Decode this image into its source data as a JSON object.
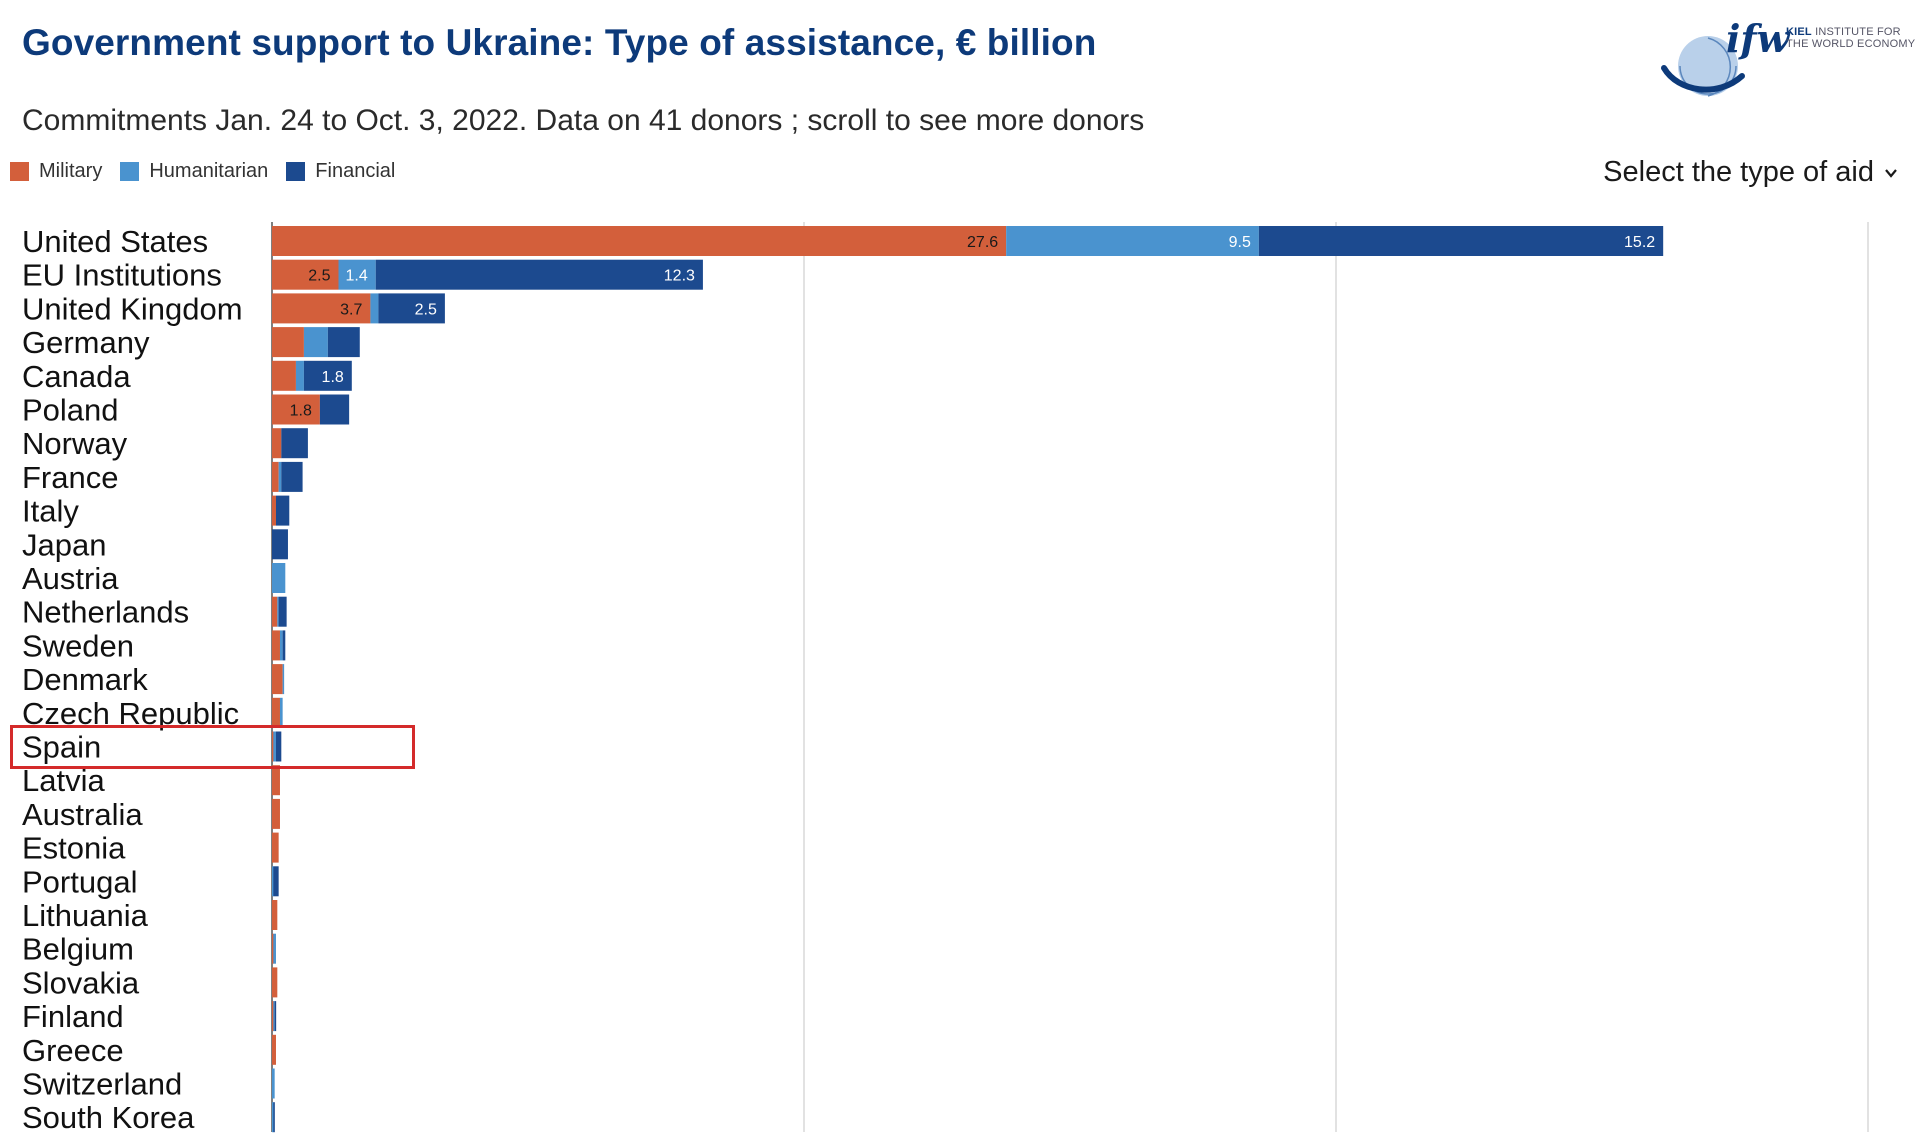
{
  "title": "Government support to Ukraine: Type of assistance, € billion",
  "subtitle": "Commitments Jan. 24 to Oct. 3, 2022. Data on 41 donors ; scroll to see more donors",
  "selector": {
    "label": "Select the type of aid",
    "icon": "chevron-down-icon"
  },
  "logo": {
    "brand": "ifw",
    "line1": "KIEL",
    "line1_rest": " INSTITUTE FOR",
    "line2": "THE WORLD ECONOMY"
  },
  "colors": {
    "military": "#d35f3b",
    "humanitarian": "#4a93cf",
    "financial": "#1c4a8f",
    "highlight": "#d42a2a",
    "title": "#0d3a7a"
  },
  "highlighted_country": "Spain",
  "chart_data": {
    "type": "bar",
    "orientation": "horizontal",
    "stacked": true,
    "legend": [
      "Military",
      "Humanitarian",
      "Financial"
    ],
    "legend_position": "top-left",
    "xlim": [
      0,
      60
    ],
    "gridlines_at": [
      0,
      20,
      40,
      60
    ],
    "categories": [
      "United States",
      "EU Institutions",
      "United Kingdom",
      "Germany",
      "Canada",
      "Poland",
      "Norway",
      "France",
      "Italy",
      "Japan",
      "Austria",
      "Netherlands",
      "Sweden",
      "Denmark",
      "Czech Republic",
      "Spain",
      "Latvia",
      "Australia",
      "Estonia",
      "Portugal",
      "Lithuania",
      "Belgium",
      "Slovakia",
      "Finland",
      "Greece",
      "Switzerland",
      "South Korea"
    ],
    "series": [
      {
        "name": "Military",
        "values": [
          27.6,
          2.5,
          3.7,
          1.2,
          0.9,
          1.8,
          0.35,
          0.25,
          0.15,
          0.0,
          0.0,
          0.2,
          0.3,
          0.4,
          0.3,
          0.05,
          0.3,
          0.3,
          0.25,
          0.0,
          0.2,
          0.05,
          0.2,
          0.05,
          0.15,
          0.0,
          0.0
        ]
      },
      {
        "name": "Humanitarian",
        "values": [
          9.5,
          1.4,
          0.3,
          0.9,
          0.3,
          0.0,
          0.0,
          0.1,
          0.0,
          0.0,
          0.5,
          0.05,
          0.1,
          0.05,
          0.1,
          0.1,
          0.0,
          0.0,
          0.0,
          0.05,
          0.0,
          0.1,
          0.0,
          0.05,
          0.0,
          0.1,
          0.05
        ]
      },
      {
        "name": "Financial",
        "values": [
          15.2,
          12.3,
          2.5,
          1.2,
          1.8,
          1.1,
          1.0,
          0.8,
          0.5,
          0.6,
          0.0,
          0.3,
          0.1,
          0.0,
          0.0,
          0.2,
          0.0,
          0.0,
          0.0,
          0.2,
          0.0,
          0.0,
          0.0,
          0.05,
          0.0,
          0.0,
          0.05
        ]
      }
    ],
    "data_labels": [
      {
        "category": "United States",
        "series": "Military",
        "text": "27.6"
      },
      {
        "category": "United States",
        "series": "Humanitarian",
        "text": "9.5"
      },
      {
        "category": "United States",
        "series": "Financial",
        "text": "15.2"
      },
      {
        "category": "EU Institutions",
        "series": "Military",
        "text": "2.5"
      },
      {
        "category": "EU Institutions",
        "series": "Humanitarian",
        "text": "1.4"
      },
      {
        "category": "EU Institutions",
        "series": "Financial",
        "text": "12.3"
      },
      {
        "category": "United Kingdom",
        "series": "Military",
        "text": "3.7"
      },
      {
        "category": "United Kingdom",
        "series": "Financial",
        "text": "2.5"
      },
      {
        "category": "Canada",
        "series": "Financial",
        "text": "1.8"
      },
      {
        "category": "Poland",
        "series": "Military",
        "text": "1.8"
      }
    ]
  }
}
